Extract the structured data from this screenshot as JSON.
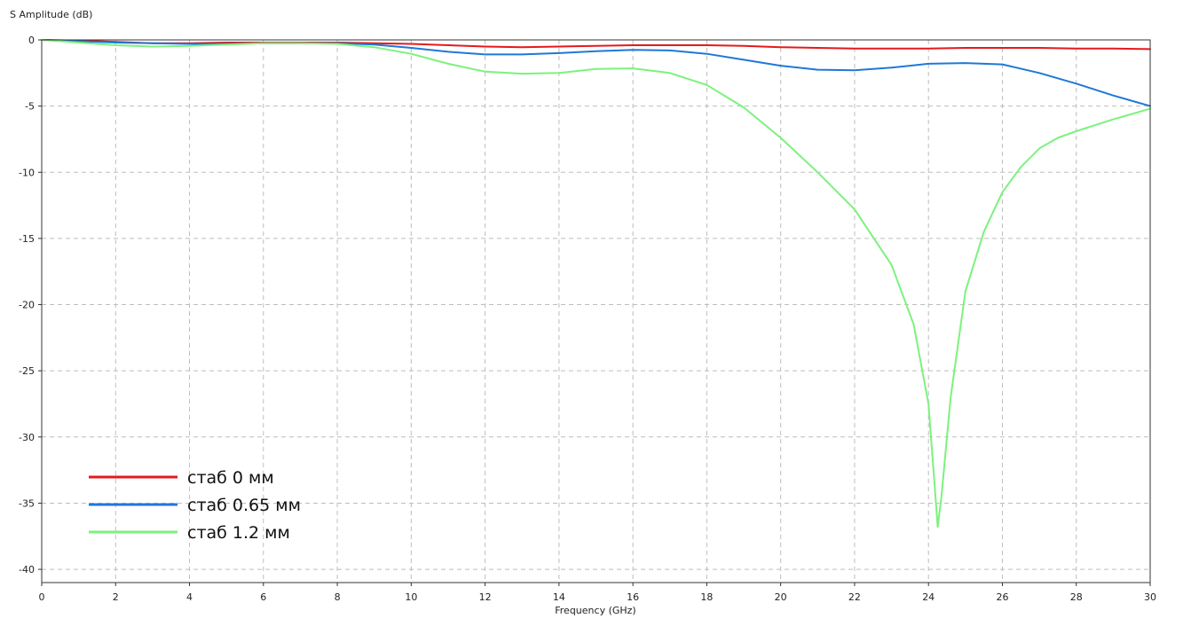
{
  "chart_data": {
    "type": "line",
    "ylabel": "S Amplitude (dB)",
    "xlabel": "Frequency (GHz)",
    "xlim": [
      0,
      30
    ],
    "ylim": [
      -41,
      0
    ],
    "x_ticks": [
      0,
      2,
      4,
      6,
      8,
      10,
      12,
      14,
      16,
      18,
      20,
      22,
      24,
      26,
      28,
      30
    ],
    "y_ticks": [
      0,
      -5,
      -10,
      -15,
      -20,
      -25,
      -30,
      -35,
      -40
    ],
    "x_tick_labels": [
      "0",
      "2",
      "4",
      "6",
      "8",
      "10",
      "12",
      "14",
      "16",
      "18",
      "20",
      "22",
      "24",
      "26",
      "28",
      "30"
    ],
    "y_tick_labels": [
      "0",
      "-5",
      "-10",
      "-15",
      "-20",
      "-25",
      "-30",
      "-35",
      "-40"
    ],
    "grid": true,
    "legend_position": "bottom-left",
    "series": [
      {
        "name": "стаб 0 мм",
        "color": "#e41a1c",
        "points": [
          [
            0,
            0
          ],
          [
            1,
            -0.05
          ],
          [
            2,
            -0.15
          ],
          [
            3,
            -0.25
          ],
          [
            4,
            -0.25
          ],
          [
            5,
            -0.2
          ],
          [
            6,
            -0.2
          ],
          [
            7,
            -0.2
          ],
          [
            8,
            -0.2
          ],
          [
            9,
            -0.25
          ],
          [
            10,
            -0.3
          ],
          [
            11,
            -0.4
          ],
          [
            12,
            -0.5
          ],
          [
            13,
            -0.55
          ],
          [
            14,
            -0.5
          ],
          [
            15,
            -0.45
          ],
          [
            16,
            -0.4
          ],
          [
            17,
            -0.4
          ],
          [
            18,
            -0.4
          ],
          [
            19,
            -0.45
          ],
          [
            20,
            -0.55
          ],
          [
            21,
            -0.6
          ],
          [
            22,
            -0.65
          ],
          [
            23,
            -0.65
          ],
          [
            24,
            -0.65
          ],
          [
            25,
            -0.6
          ],
          [
            26,
            -0.6
          ],
          [
            27,
            -0.6
          ],
          [
            28,
            -0.65
          ],
          [
            29,
            -0.65
          ],
          [
            30,
            -0.7
          ]
        ]
      },
      {
        "name": "стаб 0.65 мм",
        "color": "#1f78d8",
        "points": [
          [
            0,
            0
          ],
          [
            1,
            -0.1
          ],
          [
            2,
            -0.2
          ],
          [
            3,
            -0.25
          ],
          [
            4,
            -0.3
          ],
          [
            5,
            -0.3
          ],
          [
            6,
            -0.25
          ],
          [
            7,
            -0.25
          ],
          [
            8,
            -0.25
          ],
          [
            9,
            -0.35
          ],
          [
            10,
            -0.6
          ],
          [
            11,
            -0.9
          ],
          [
            12,
            -1.1
          ],
          [
            13,
            -1.1
          ],
          [
            14,
            -1.0
          ],
          [
            15,
            -0.85
          ],
          [
            16,
            -0.75
          ],
          [
            17,
            -0.8
          ],
          [
            18,
            -1.05
          ],
          [
            19,
            -1.5
          ],
          [
            20,
            -1.95
          ],
          [
            21,
            -2.25
          ],
          [
            22,
            -2.3
          ],
          [
            23,
            -2.1
          ],
          [
            24,
            -1.8
          ],
          [
            25,
            -1.75
          ],
          [
            26,
            -1.85
          ],
          [
            27,
            -2.5
          ],
          [
            28,
            -3.3
          ],
          [
            29,
            -4.2
          ],
          [
            30,
            -5.0
          ]
        ]
      },
      {
        "name": "стаб 1.2 мм",
        "color": "#7cf27c",
        "points": [
          [
            0,
            0
          ],
          [
            1,
            -0.2
          ],
          [
            2,
            -0.4
          ],
          [
            3,
            -0.5
          ],
          [
            4,
            -0.45
          ],
          [
            5,
            -0.35
          ],
          [
            6,
            -0.25
          ],
          [
            7,
            -0.25
          ],
          [
            8,
            -0.3
          ],
          [
            9,
            -0.55
          ],
          [
            10,
            -1.05
          ],
          [
            11,
            -1.8
          ],
          [
            12,
            -2.4
          ],
          [
            13,
            -2.55
          ],
          [
            14,
            -2.5
          ],
          [
            15,
            -2.2
          ],
          [
            16,
            -2.15
          ],
          [
            17,
            -2.5
          ],
          [
            18,
            -3.4
          ],
          [
            19,
            -5.1
          ],
          [
            20,
            -7.4
          ],
          [
            21,
            -10.0
          ],
          [
            22,
            -12.8
          ],
          [
            23,
            -17.0
          ],
          [
            23.6,
            -21.5
          ],
          [
            24,
            -27.5
          ],
          [
            24.15,
            -33.0
          ],
          [
            24.25,
            -36.8
          ],
          [
            24.35,
            -34.5
          ],
          [
            24.6,
            -27.0
          ],
          [
            25,
            -19.0
          ],
          [
            25.5,
            -14.5
          ],
          [
            26,
            -11.5
          ],
          [
            26.5,
            -9.6
          ],
          [
            27,
            -8.2
          ],
          [
            27.5,
            -7.4
          ],
          [
            28,
            -6.9
          ],
          [
            29,
            -6.0
          ],
          [
            30,
            -5.2
          ]
        ]
      }
    ]
  }
}
